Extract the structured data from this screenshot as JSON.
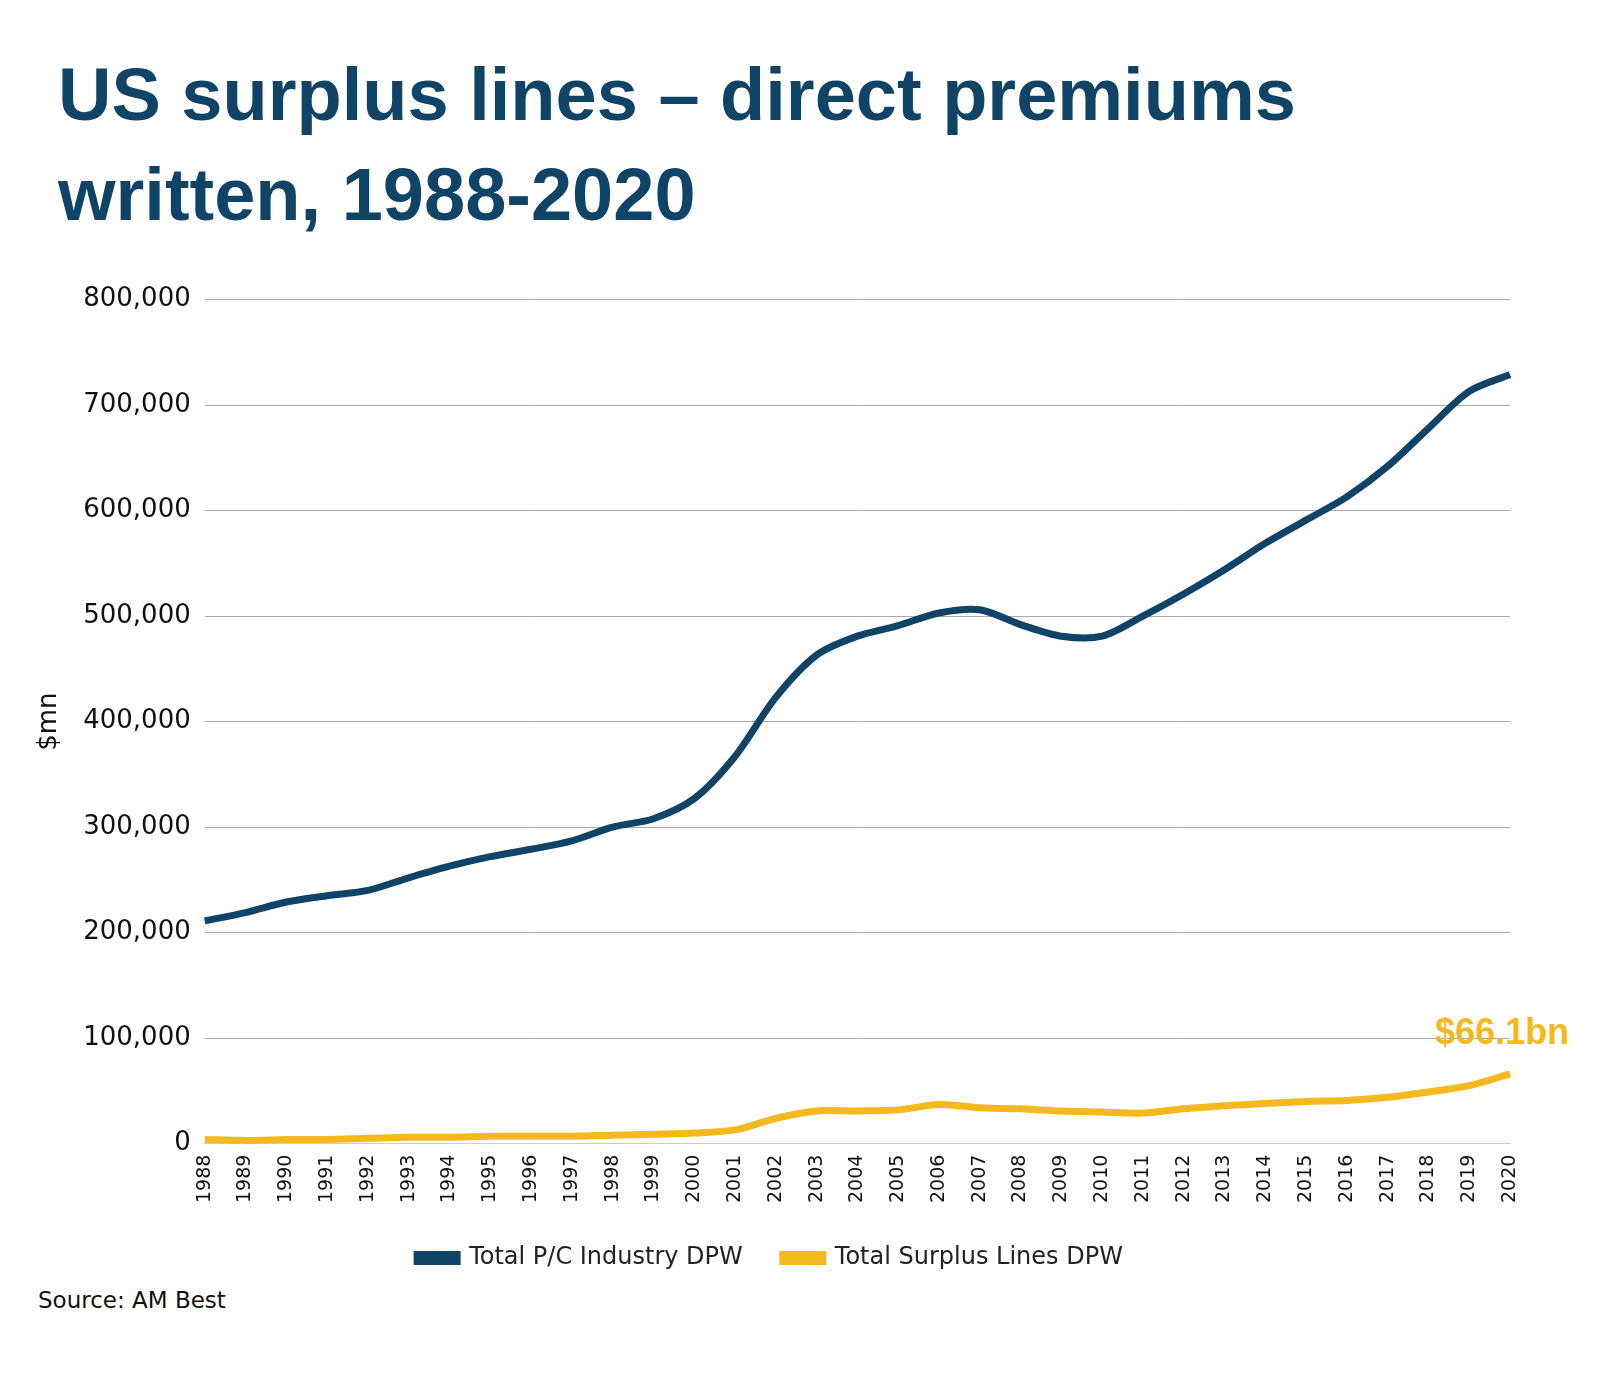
{
  "chart_data": {
    "type": "line",
    "title": "US surplus lines – direct premiums written, 1988-2020",
    "y_label": "$mn",
    "source": "Source: AM Best",
    "categories": [
      "1988",
      "1989",
      "1990",
      "1991",
      "1992",
      "1993",
      "1994",
      "1995",
      "1996",
      "1997",
      "1998",
      "1999",
      "2000",
      "2001",
      "2002",
      "2003",
      "2004",
      "2005",
      "2006",
      "2007",
      "2008",
      "2009",
      "2010",
      "2011",
      "2012",
      "2013",
      "2014",
      "2015",
      "2016",
      "2017",
      "2018",
      "2019",
      "2020"
    ],
    "series": [
      {
        "name": "Total P/C Industry DPW",
        "color": "#0f4466",
        "values": [
          211000,
          219000,
          229000,
          235000,
          240000,
          252000,
          263000,
          272000,
          279000,
          287000,
          300000,
          308000,
          327000,
          367000,
          423000,
          463000,
          481000,
          491000,
          503000,
          506000,
          492000,
          481000,
          481000,
          500000,
          521000,
          544000,
          569000,
          591000,
          613000,
          642000,
          678000,
          713000,
          729000
        ]
      },
      {
        "name": "Total Surplus Lines DPW",
        "color": "#f5b91e",
        "values": [
          4000,
          3000,
          4000,
          4000,
          5000,
          6000,
          6000,
          7000,
          7000,
          7000,
          8000,
          9000,
          10000,
          13000,
          24000,
          31000,
          31000,
          32000,
          37000,
          34000,
          33000,
          31000,
          30000,
          29000,
          33000,
          36000,
          38000,
          40000,
          41000,
          44000,
          49000,
          55000,
          66100
        ]
      }
    ],
    "annotations": [
      {
        "text": "$66.1bn",
        "x": "2020",
        "y": 66100,
        "color": "#f5b91e"
      }
    ],
    "ylim": [
      0,
      800000
    ],
    "yticks": [
      0,
      {
        "value": 100000,
        "label": "100,000"
      },
      {
        "value": 200000,
        "label": "200,000"
      },
      {
        "value": 300000,
        "label": "300,000"
      },
      {
        "value": 400000,
        "label": "400,000"
      },
      {
        "value": 500000,
        "label": "500,000"
      },
      {
        "value": 600000,
        "label": "600,000"
      },
      {
        "value": 700000,
        "label": "700,000"
      },
      {
        "value": 800000,
        "label": "800,000"
      }
    ],
    "grid": true,
    "legend": "bottom"
  }
}
